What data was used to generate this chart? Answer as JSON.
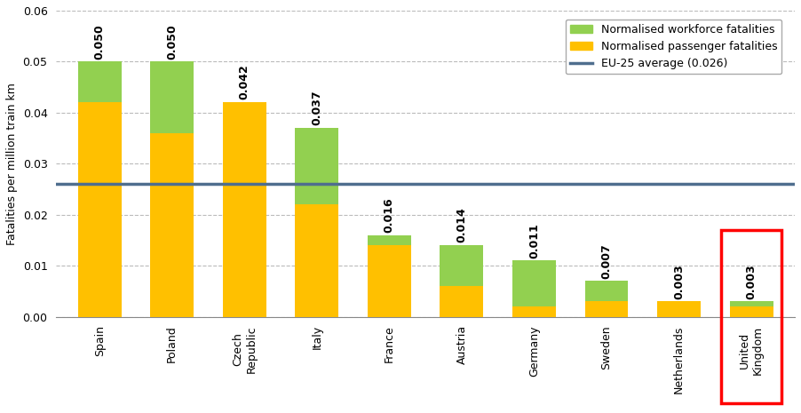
{
  "categories": [
    "Spain",
    "Poland",
    "Czech\nRepublic",
    "Italy",
    "France",
    "Austria",
    "Germany",
    "Sweden",
    "Netherlands",
    "United\nKingdom"
  ],
  "passenger": [
    0.042,
    0.036,
    0.042,
    0.022,
    0.014,
    0.006,
    0.002,
    0.003,
    0.003,
    0.002
  ],
  "workforce": [
    0.008,
    0.014,
    0.0,
    0.015,
    0.002,
    0.008,
    0.009,
    0.004,
    0.0,
    0.001
  ],
  "totals": [
    0.05,
    0.05,
    0.042,
    0.037,
    0.016,
    0.014,
    0.011,
    0.007,
    0.003,
    0.003
  ],
  "eu_average": 0.026,
  "eu_label": "EU-25 average (0.026)",
  "passenger_color": "#FFC000",
  "workforce_color": "#92D050",
  "eu_line_color": "#4F6228",
  "ylabel": "Fatalities per million train km",
  "ylim": [
    0,
    0.06
  ],
  "yticks": [
    0.0,
    0.01,
    0.02,
    0.03,
    0.04,
    0.05,
    0.06
  ],
  "legend_workforce": "Normalised workforce fatalities",
  "legend_passenger": "Normalised passenger fatalities",
  "background_color": "#FFFFFF",
  "grid_color": "#BBBBBB",
  "last_bar_box_color": "red",
  "bar_width": 0.6,
  "label_fontsize": 9,
  "tick_fontsize": 9
}
